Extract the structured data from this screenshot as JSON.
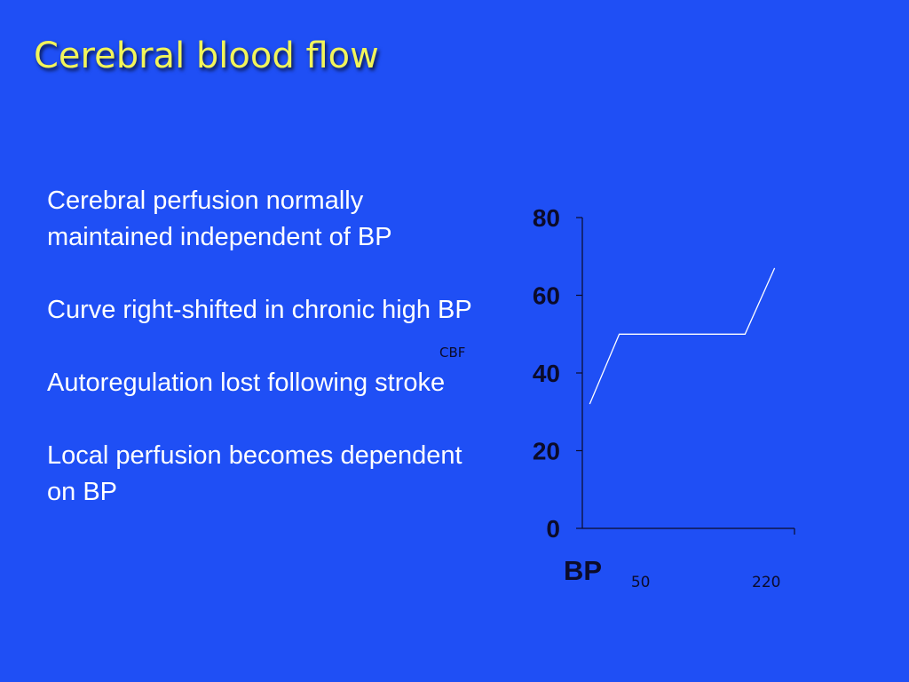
{
  "slide": {
    "title": "Cerebral blood flow",
    "bullets": [
      "Cerebral perfusion normally maintained independent of BP",
      "Curve right-shifted in chronic high BP",
      "Autoregulation lost following stroke",
      "Local perfusion becomes dependent on BP"
    ]
  },
  "chart_data": {
    "type": "line",
    "xlabel": "BP",
    "ylabel": "CBF",
    "ylim": [
      0,
      80
    ],
    "yticks": [
      "0",
      "20",
      "40",
      "60",
      "80"
    ],
    "xticks": [
      {
        "label": "50",
        "value": 50
      },
      {
        "label": "220",
        "value": 220
      }
    ],
    "series": [
      {
        "points": [
          {
            "x": 10,
            "y": 32
          },
          {
            "x": 50,
            "y": 50
          },
          {
            "x": 220,
            "y": 50
          },
          {
            "x": 260,
            "y": 67
          }
        ],
        "color": "#ffffff"
      }
    ],
    "grid": false
  }
}
